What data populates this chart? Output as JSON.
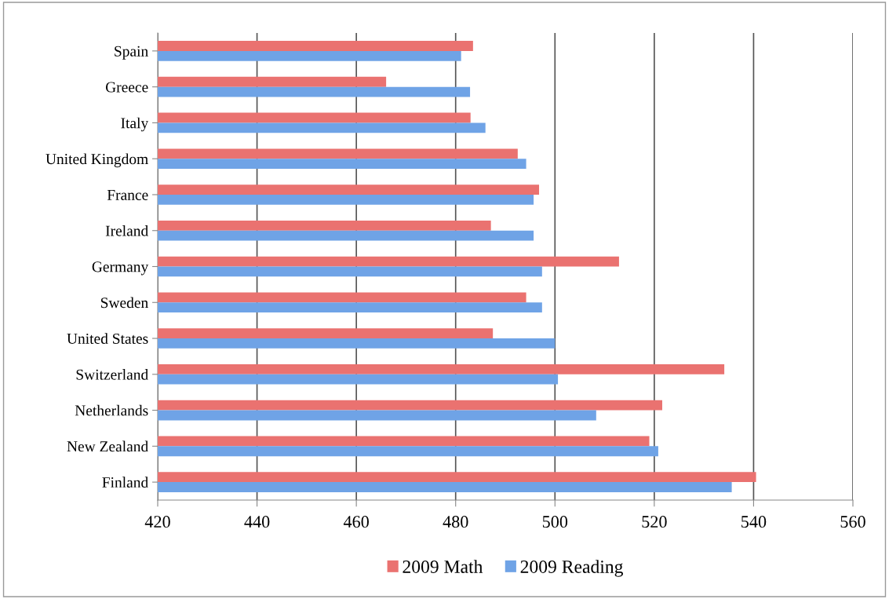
{
  "chart_data": {
    "type": "bar",
    "orientation": "horizontal",
    "categories": [
      "Spain",
      "Greece",
      "Italy",
      "United Kingdom",
      "France",
      "Ireland",
      "Germany",
      "Sweden",
      "United States",
      "Switzerland",
      "Netherlands",
      "New Zealand",
      "Finland"
    ],
    "series": [
      {
        "name": "2009 Math",
        "color": "#ea7270",
        "values": [
          483.5,
          466,
          483,
          492.5,
          496.8,
          487.1,
          512.9,
          494.2,
          487.5,
          534.1,
          521.6,
          519,
          540.5
        ]
      },
      {
        "name": "2009 Reading",
        "color": "#6fa3e6",
        "values": [
          481.1,
          482.9,
          486,
          494.2,
          495.7,
          495.7,
          497.4,
          497.4,
          500,
          500.6,
          508.3,
          520.8,
          535.6
        ]
      }
    ],
    "xlim": [
      420,
      560
    ],
    "xticks": [
      420,
      440,
      460,
      480,
      500,
      520,
      540,
      560
    ],
    "grid": "x",
    "legend": "bottom"
  }
}
